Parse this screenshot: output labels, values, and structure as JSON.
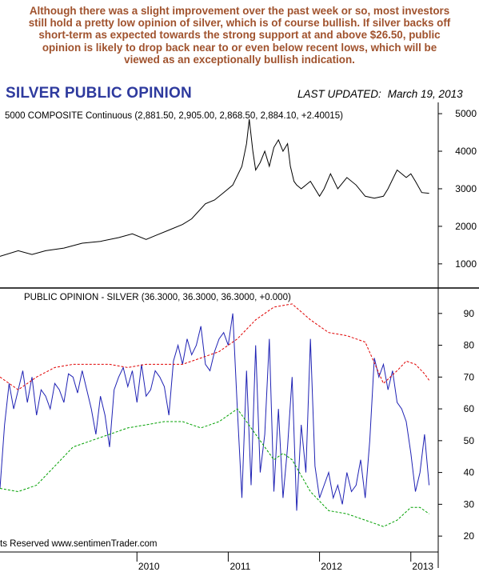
{
  "commentary": [
    "Although there was a slight improvement over the past week or so, most investors",
    "still hold a pretty low opinion of silver, which is of course bullish. If silver backs off",
    "short-term as expected towards the strong support at and above $26.50, public",
    "opinion is likely to drop back near to or even below recent lows, which will be",
    "viewed as an exceptionally bullish indication."
  ],
  "title": "SILVER PUBLIC OPINION",
  "last_updated_label": "LAST UPDATED:",
  "last_updated_date": "March 19, 2013",
  "watermark": "ts Reserved  www.sentimenTrader.com",
  "colors": {
    "price_line": "#000000",
    "opinion_line": "#1f22b4",
    "upper_band": "#e00000",
    "lower_band": "#00a000",
    "title": "#2e3a9e",
    "commentary": "#a0522d"
  },
  "chart_data": [
    {
      "type": "line",
      "panel": "top",
      "title": "5000 COMPOSITE Continuous (2,881.50, 2,905.00, 2,868.50, 2,884.10, +2.40015)",
      "ylim": [
        400,
        5300
      ],
      "yticks": [
        1000,
        2000,
        3000,
        4000,
        5000
      ],
      "x": [
        2008.5,
        2008.7,
        2008.85,
        2009.0,
        2009.2,
        2009.4,
        2009.6,
        2009.8,
        2009.95,
        2010.1,
        2010.2,
        2010.35,
        2010.5,
        2010.6,
        2010.75,
        2010.85,
        2010.95,
        2011.05,
        2011.15,
        2011.2,
        2011.23,
        2011.27,
        2011.3,
        2011.35,
        2011.4,
        2011.45,
        2011.5,
        2011.55,
        2011.6,
        2011.65,
        2011.68,
        2011.72,
        2011.75,
        2011.8,
        2011.9,
        2012.0,
        2012.05,
        2012.12,
        2012.2,
        2012.3,
        2012.4,
        2012.5,
        2012.6,
        2012.7,
        2012.75,
        2012.85,
        2012.95,
        2013.0,
        2013.05,
        2013.12,
        2013.2
      ],
      "values": [
        1200,
        1350,
        1250,
        1350,
        1420,
        1550,
        1600,
        1700,
        1800,
        1650,
        1750,
        1900,
        2050,
        2200,
        2600,
        2700,
        2900,
        3100,
        3600,
        4200,
        4850,
        4000,
        3500,
        3700,
        4000,
        3600,
        4100,
        4300,
        4000,
        4200,
        3600,
        3200,
        3100,
        3000,
        3200,
        2800,
        3000,
        3400,
        3000,
        3300,
        3100,
        2800,
        2750,
        2800,
        3000,
        3500,
        3300,
        3400,
        3200,
        2900,
        2880
      ],
      "xlim": [
        2008.5,
        2013.3
      ]
    },
    {
      "type": "line",
      "panel": "bottom",
      "title": "PUBLIC OPINION - SILVER (36.3000, 36.3000, 36.3000, +0.000)",
      "ylim": [
        15,
        98
      ],
      "yticks": [
        20,
        30,
        40,
        50,
        60,
        70,
        80,
        90
      ],
      "xlim": [
        2008.5,
        2013.3
      ],
      "x_tick_labels": [
        "2010",
        "2011",
        "2012",
        "2013"
      ],
      "x_tick_values": [
        2010,
        2011,
        2012,
        2013
      ],
      "series": [
        {
          "role": "opinion",
          "x": [
            2008.5,
            2008.55,
            2008.6,
            2008.65,
            2008.7,
            2008.75,
            2008.8,
            2008.85,
            2008.9,
            2008.95,
            2009.0,
            2009.05,
            2009.1,
            2009.15,
            2009.2,
            2009.25,
            2009.3,
            2009.35,
            2009.4,
            2009.45,
            2009.5,
            2009.55,
            2009.6,
            2009.65,
            2009.7,
            2009.75,
            2009.8,
            2009.85,
            2009.9,
            2009.95,
            2010.0,
            2010.05,
            2010.1,
            2010.15,
            2010.2,
            2010.25,
            2010.3,
            2010.35,
            2010.4,
            2010.45,
            2010.5,
            2010.55,
            2010.6,
            2010.65,
            2010.7,
            2010.75,
            2010.8,
            2010.85,
            2010.9,
            2010.95,
            2011.0,
            2011.05,
            2011.1,
            2011.15,
            2011.2,
            2011.25,
            2011.3,
            2011.35,
            2011.4,
            2011.45,
            2011.5,
            2011.55,
            2011.6,
            2011.65,
            2011.7,
            2011.75,
            2011.8,
            2011.85,
            2011.9,
            2011.95,
            2012.0,
            2012.05,
            2012.1,
            2012.15,
            2012.2,
            2012.25,
            2012.3,
            2012.35,
            2012.4,
            2012.45,
            2012.5,
            2012.55,
            2012.6,
            2012.65,
            2012.7,
            2012.75,
            2012.8,
            2012.85,
            2012.9,
            2012.95,
            2013.0,
            2013.05,
            2013.1,
            2013.15,
            2013.2
          ],
          "values": [
            35,
            55,
            68,
            60,
            66,
            72,
            62,
            70,
            58,
            66,
            64,
            60,
            68,
            66,
            62,
            71,
            70,
            65,
            72,
            66,
            60,
            52,
            64,
            58,
            48,
            66,
            70,
            73,
            67,
            72,
            62,
            74,
            64,
            66,
            72,
            70,
            67,
            58,
            75,
            80,
            74,
            82,
            77,
            80,
            86,
            74,
            72,
            78,
            82,
            84,
            80,
            90,
            60,
            32,
            72,
            36,
            80,
            40,
            52,
            82,
            34,
            60,
            32,
            48,
            70,
            28,
            55,
            40,
            82,
            42,
            32,
            36,
            40,
            32,
            36,
            30,
            40,
            34,
            36,
            44,
            32,
            50,
            76,
            70,
            74,
            66,
            72,
            62,
            60,
            56,
            46,
            34,
            40,
            52,
            36
          ],
          "xlim_note": ""
        },
        {
          "role": "upper_band",
          "x": [
            2008.5,
            2008.7,
            2008.9,
            2009.1,
            2009.3,
            2009.5,
            2009.7,
            2009.9,
            2010.1,
            2010.3,
            2010.5,
            2010.7,
            2010.9,
            2011.1,
            2011.3,
            2011.5,
            2011.7,
            2011.9,
            2012.1,
            2012.3,
            2012.5,
            2012.7,
            2012.85,
            2012.95,
            2013.05,
            2013.15,
            2013.2
          ],
          "values": [
            70,
            66,
            70,
            73,
            74,
            74,
            74,
            73,
            74,
            74,
            74,
            76,
            78,
            82,
            88,
            92,
            93,
            88,
            84,
            83,
            81,
            68,
            72,
            75,
            74,
            71,
            69
          ]
        },
        {
          "role": "lower_band",
          "x": [
            2008.5,
            2008.7,
            2008.9,
            2009.1,
            2009.3,
            2009.5,
            2009.7,
            2009.9,
            2010.1,
            2010.3,
            2010.5,
            2010.7,
            2010.9,
            2011.1,
            2011.3,
            2011.5,
            2011.6,
            2011.7,
            2011.9,
            2012.1,
            2012.3,
            2012.5,
            2012.7,
            2012.85,
            2013.0,
            2013.1,
            2013.2
          ],
          "values": [
            35,
            34,
            36,
            42,
            48,
            50,
            52,
            54,
            55,
            56,
            56,
            54,
            56,
            60,
            52,
            44,
            46,
            44,
            34,
            28,
            27,
            25,
            23,
            25,
            29,
            29,
            27
          ]
        }
      ]
    }
  ]
}
